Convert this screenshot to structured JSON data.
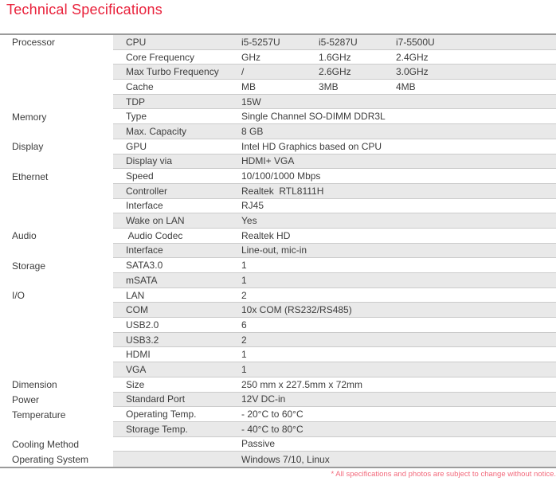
{
  "title": "Technical Specifications",
  "footnote": "* All specifications and photos are subject to change without notice.",
  "colors": {
    "accent_red": "#e9213b",
    "footnote_red": "#f2697b",
    "row_shade": "#e9e9e9",
    "separator": "#cbcbcb",
    "frame_border": "#9b9b9b",
    "text": "#3d3d3d"
  },
  "table": {
    "rows": [
      {
        "category": "Processor",
        "label": "CPU",
        "values": [
          "i5-5257U",
          "i5-5287U",
          "i7-5500U"
        ],
        "shaded": true
      },
      {
        "category": "",
        "label": "Core Frequency",
        "values": [
          "GHz",
          "1.6GHz",
          "2.4GHz"
        ],
        "shaded": false
      },
      {
        "category": "",
        "label": "Max Turbo Frequency",
        "values": [
          "/",
          "2.6GHz",
          "3.0GHz"
        ],
        "shaded": true
      },
      {
        "category": "",
        "label": "Cache",
        "values": [
          "MB",
          "3MB",
          "4MB"
        ],
        "shaded": false
      },
      {
        "category": "",
        "label": "TDP",
        "values": [
          "15W"
        ],
        "shaded": true
      },
      {
        "category": "Memory",
        "label": "Type",
        "values": [
          "Single Channel SO-DIMM DDR3L"
        ],
        "shaded": false
      },
      {
        "category": "",
        "label": "Max. Capacity",
        "values": [
          "8 GB"
        ],
        "shaded": true
      },
      {
        "category": "Display",
        "label": "GPU",
        "values": [
          "Intel HD Graphics based on CPU"
        ],
        "shaded": false
      },
      {
        "category": "",
        "label": "Display via",
        "values": [
          "HDMI+ VGA"
        ],
        "shaded": true
      },
      {
        "category": "Ethernet",
        "label": "Speed",
        "values": [
          "10/100/1000 Mbps"
        ],
        "shaded": false
      },
      {
        "category": "",
        "label": "Controller",
        "values": [
          "Realtek  RTL8111H"
        ],
        "shaded": true
      },
      {
        "category": "",
        "label": "Interface",
        "values": [
          "RJ45"
        ],
        "shaded": false
      },
      {
        "category": "",
        "label": "Wake on LAN",
        "values": [
          "Yes"
        ],
        "shaded": true
      },
      {
        "category": "Audio",
        "label": " Audio Codec",
        "values": [
          "Realtek HD"
        ],
        "shaded": false
      },
      {
        "category": "",
        "label": "Interface",
        "values": [
          "Line-out, mic-in"
        ],
        "shaded": true
      },
      {
        "category": "Storage",
        "label": "SATA3.0",
        "values": [
          "1"
        ],
        "shaded": false
      },
      {
        "category": "",
        "label": "mSATA",
        "values": [
          "1"
        ],
        "shaded": true
      },
      {
        "category": "I/O",
        "label": "LAN",
        "values": [
          "2"
        ],
        "shaded": false
      },
      {
        "category": "",
        "label": "COM",
        "values": [
          "10x COM (RS232/RS485)"
        ],
        "shaded": true
      },
      {
        "category": "",
        "label": "USB2.0",
        "values": [
          "6"
        ],
        "shaded": false
      },
      {
        "category": "",
        "label": "USB3.2",
        "values": [
          "2"
        ],
        "shaded": true
      },
      {
        "category": "",
        "label": "HDMI",
        "values": [
          "1"
        ],
        "shaded": false
      },
      {
        "category": "",
        "label": "VGA",
        "values": [
          "1"
        ],
        "shaded": true
      },
      {
        "category": "Dimension",
        "label": "Size",
        "values": [
          "250 mm x 227.5mm x 72mm"
        ],
        "shaded": false
      },
      {
        "category": "Power",
        "label": "Standard Port",
        "values": [
          "12V DC-in"
        ],
        "shaded": true
      },
      {
        "category": "Temperature",
        "label": "Operating Temp.",
        "values": [
          "- 20°C to 60°C"
        ],
        "shaded": false
      },
      {
        "category": "",
        "label": "Storage Temp.",
        "values": [
          "- 40°C to 80°C"
        ],
        "shaded": true
      },
      {
        "category": "Cooling Method",
        "label": "",
        "values": [
          "Passive"
        ],
        "shaded": false
      },
      {
        "category": "Operating System",
        "label": "",
        "values": [
          "Windows 7/10, Linux"
        ],
        "shaded": true
      }
    ]
  }
}
